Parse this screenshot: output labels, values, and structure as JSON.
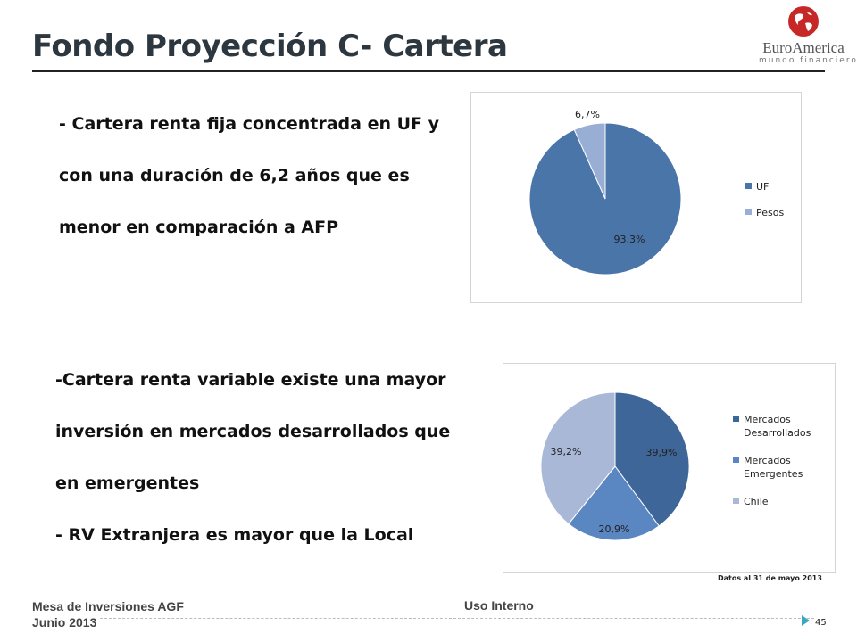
{
  "title": "Fondo Proyección C- Cartera",
  "logo": {
    "brand": "EuroAmerica",
    "tagline": "mundo financiero"
  },
  "section_fixed": {
    "lines": [
      "- Cartera renta fija  concentrada en UF y",
      "con una duración de 6,2 años  que es",
      "menor en comparación a AFP"
    ]
  },
  "section_variable": {
    "lines": [
      "-Cartera renta variable existe una mayor",
      "inversión en mercados desarrollados que",
      "en emergentes",
      "- RV Extranjera es mayor que la Local"
    ]
  },
  "chart_data": [
    {
      "type": "pie",
      "title": "",
      "categories": [
        "UF",
        "Pesos"
      ],
      "values": [
        93.3,
        6.7
      ],
      "value_labels": [
        "93,3%",
        "6,7%"
      ],
      "colors": [
        "#4a75a8",
        "#98aed4"
      ],
      "legend": {
        "position": "right",
        "entries": [
          {
            "label": "UF",
            "color": "#4a75a8"
          },
          {
            "label": "Pesos",
            "color": "#98aed4"
          }
        ]
      }
    },
    {
      "type": "pie",
      "title": "",
      "categories": [
        "Mercados Desarrollados",
        "Mercados Emergentes",
        "Chile"
      ],
      "values": [
        39.9,
        20.9,
        39.2
      ],
      "value_labels": [
        "39,9%",
        "20,9%",
        "39,2%"
      ],
      "colors": [
        "#3f6699",
        "#5a86c2",
        "#a9b8d7"
      ],
      "legend": {
        "position": "right",
        "entries": [
          {
            "label_lines": [
              "Mercados",
              "Desarrollados"
            ],
            "color": "#3f6699"
          },
          {
            "label_lines": [
              "Mercados",
              "Emergentes"
            ],
            "color": "#5a86c2"
          },
          {
            "label_lines": [
              "Chile"
            ],
            "color": "#a9b8d7"
          }
        ]
      }
    }
  ],
  "note": "Datos al 31 de mayo 2013",
  "footer": {
    "left_line1": "Mesa de Inversiones AGF",
    "left_line2": "Junio 2013",
    "center": "Uso Interno",
    "page_number": "45"
  }
}
